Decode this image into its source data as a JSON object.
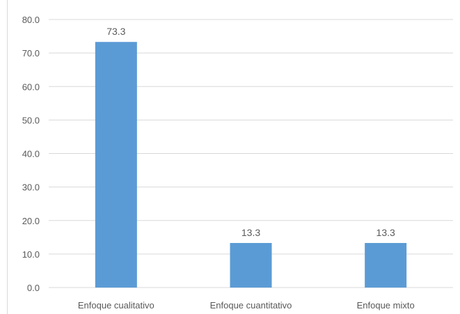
{
  "chart_data": {
    "type": "bar",
    "title": "",
    "xlabel": "",
    "ylabel": "",
    "categories": [
      "Enfoque cualitativo",
      "Enfoque cuantitativo",
      "Enfoque mixto"
    ],
    "values": [
      73.3,
      13.3,
      13.3
    ],
    "data_labels": [
      "73.3",
      "13.3",
      "13.3"
    ],
    "ylim": [
      0,
      80
    ],
    "y_ticks": [
      "0.0",
      "10.0",
      "20.0",
      "30.0",
      "40.0",
      "50.0",
      "60.0",
      "70.0",
      "80.0"
    ],
    "grid": true,
    "legend": "none",
    "colors": {
      "bar": "#5b9bd5",
      "grid": "#d9d9d9",
      "text": "#595959"
    }
  }
}
